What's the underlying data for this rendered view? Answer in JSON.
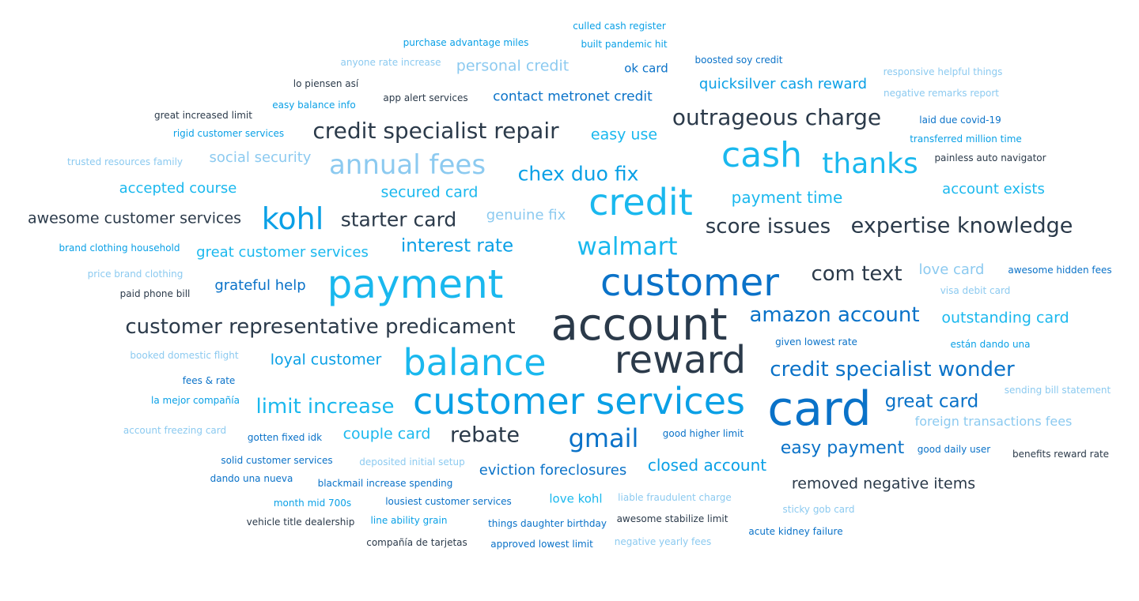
{
  "word_cloud": {
    "words": [
      {
        "text": "culled cash register",
        "color": "mb"
      },
      {
        "text": "purchase advantage miles",
        "color": "mb"
      },
      {
        "text": "built pandemic hit",
        "color": "mb"
      },
      {
        "text": "anyone rate increase",
        "color": "lb"
      },
      {
        "text": "personal credit",
        "color": "lb"
      },
      {
        "text": "ok card",
        "color": "db"
      },
      {
        "text": "boosted soy credit",
        "color": "db"
      },
      {
        "text": "responsive helpful things",
        "color": "lb"
      },
      {
        "text": "lo piensen así",
        "color": "dk"
      },
      {
        "text": "quicksilver cash reward",
        "color": "mb"
      },
      {
        "text": "easy balance info",
        "color": "mb"
      },
      {
        "text": "app alert services",
        "color": "dk"
      },
      {
        "text": "contact metronet credit",
        "color": "db"
      },
      {
        "text": "negative remarks report",
        "color": "lb"
      },
      {
        "text": "great increased limit",
        "color": "dk"
      },
      {
        "text": "outrageous charge",
        "color": "dk"
      },
      {
        "text": "laid due covid-19",
        "color": "db"
      },
      {
        "text": "rigid customer services",
        "color": "mb"
      },
      {
        "text": "credit specialist repair",
        "color": "dk"
      },
      {
        "text": "easy use",
        "color": "cy"
      },
      {
        "text": "transferred million time",
        "color": "mb"
      },
      {
        "text": "cash",
        "color": "cy"
      },
      {
        "text": "thanks",
        "color": "cy"
      },
      {
        "text": "painless auto navigator",
        "color": "dk"
      },
      {
        "text": "trusted resources family",
        "color": "lb"
      },
      {
        "text": "social security",
        "color": "lb"
      },
      {
        "text": "annual fees",
        "color": "lb"
      },
      {
        "text": "chex duo fix",
        "color": "mb"
      },
      {
        "text": "accepted course",
        "color": "cy"
      },
      {
        "text": "secured card",
        "color": "cy"
      },
      {
        "text": "credit",
        "color": "cy"
      },
      {
        "text": "payment time",
        "color": "cy"
      },
      {
        "text": "account exists",
        "color": "cy"
      },
      {
        "text": "awesome customer services",
        "color": "dk"
      },
      {
        "text": "kohl",
        "color": "mb"
      },
      {
        "text": "starter card",
        "color": "dk"
      },
      {
        "text": "genuine fix",
        "color": "lb"
      },
      {
        "text": "score issues",
        "color": "dk"
      },
      {
        "text": "expertise knowledge",
        "color": "dk"
      },
      {
        "text": "brand clothing household",
        "color": "mb"
      },
      {
        "text": "great customer services",
        "color": "cy"
      },
      {
        "text": "interest rate",
        "color": "mb"
      },
      {
        "text": "walmart",
        "color": "cy"
      },
      {
        "text": "price brand clothing",
        "color": "lb"
      },
      {
        "text": "com text",
        "color": "dk"
      },
      {
        "text": "love card",
        "color": "lb"
      },
      {
        "text": "awesome hidden fees",
        "color": "db"
      },
      {
        "text": "grateful help",
        "color": "db"
      },
      {
        "text": "payment",
        "color": "cy"
      },
      {
        "text": "customer",
        "color": "db"
      },
      {
        "text": "paid phone bill",
        "color": "dk"
      },
      {
        "text": "visa debit card",
        "color": "lb"
      },
      {
        "text": "amazon account",
        "color": "db"
      },
      {
        "text": "outstanding card",
        "color": "cy"
      },
      {
        "text": "customer representative predicament",
        "color": "dk"
      },
      {
        "text": "account",
        "color": "dk"
      },
      {
        "text": "booked domestic flight",
        "color": "lb"
      },
      {
        "text": "loyal customer",
        "color": "mb"
      },
      {
        "text": "balance",
        "color": "cy"
      },
      {
        "text": "reward",
        "color": "dk"
      },
      {
        "text": "given lowest rate",
        "color": "db"
      },
      {
        "text": "están dando una",
        "color": "mb"
      },
      {
        "text": "credit specialist wonder",
        "color": "db"
      },
      {
        "text": "fees & rate",
        "color": "db"
      },
      {
        "text": "sending bill statement",
        "color": "lb"
      },
      {
        "text": "la mejor compañía",
        "color": "mb"
      },
      {
        "text": "limit increase",
        "color": "cy"
      },
      {
        "text": "customer services",
        "color": "mb"
      },
      {
        "text": "card",
        "color": "db"
      },
      {
        "text": "great card",
        "color": "db"
      },
      {
        "text": "foreign transactions fees",
        "color": "lb"
      },
      {
        "text": "account freezing card",
        "color": "lb"
      },
      {
        "text": "gotten fixed idk",
        "color": "db"
      },
      {
        "text": "couple card",
        "color": "cy"
      },
      {
        "text": "rebate",
        "color": "dk"
      },
      {
        "text": "gmail",
        "color": "db"
      },
      {
        "text": "good higher limit",
        "color": "db"
      },
      {
        "text": "easy payment",
        "color": "db"
      },
      {
        "text": "good daily user",
        "color": "db"
      },
      {
        "text": "benefits reward rate",
        "color": "dk"
      },
      {
        "text": "solid customer services",
        "color": "db"
      },
      {
        "text": "deposited initial setup",
        "color": "lb"
      },
      {
        "text": "eviction foreclosures",
        "color": "db"
      },
      {
        "text": "closed account",
        "color": "mb"
      },
      {
        "text": "dando una nueva",
        "color": "db"
      },
      {
        "text": "blackmail increase spending",
        "color": "db"
      },
      {
        "text": "removed negative items",
        "color": "dk"
      },
      {
        "text": "month mid 700s",
        "color": "mb"
      },
      {
        "text": "lousiest customer services",
        "color": "db"
      },
      {
        "text": "love kohl",
        "color": "cy"
      },
      {
        "text": "liable fraudulent charge",
        "color": "lb"
      },
      {
        "text": "sticky gob card",
        "color": "lb"
      },
      {
        "text": "vehicle title dealership",
        "color": "dk"
      },
      {
        "text": "line ability grain",
        "color": "mb"
      },
      {
        "text": "things daughter birthday",
        "color": "db"
      },
      {
        "text": "awesome stabilize limit",
        "color": "dk"
      },
      {
        "text": "acute kidney failure",
        "color": "db"
      },
      {
        "text": "compañía de tarjetas",
        "color": "dk"
      },
      {
        "text": "approved lowest limit",
        "color": "db"
      },
      {
        "text": "negative yearly fees",
        "color": "lb"
      }
    ]
  }
}
